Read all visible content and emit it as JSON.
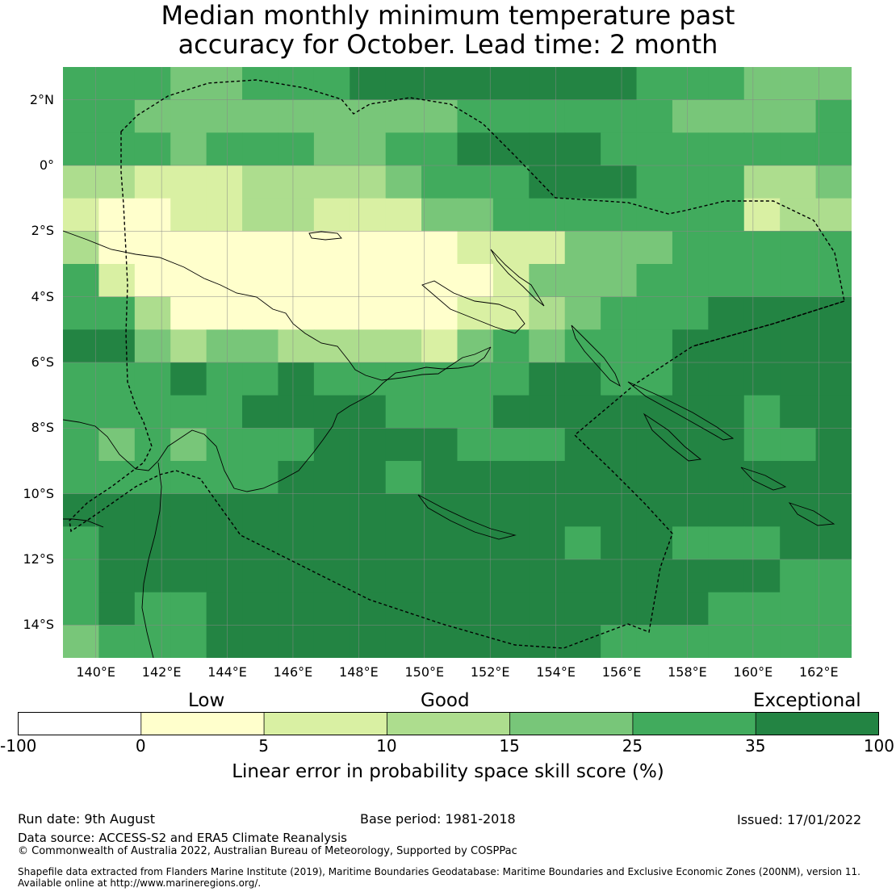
{
  "title": {
    "line1": "Median monthly minimum temperature past",
    "line2": "accuracy for October. Lead time: 2 month"
  },
  "map": {
    "lon_labels": [
      "140°E",
      "142°E",
      "144°E",
      "146°E",
      "148°E",
      "150°E",
      "152°E",
      "154°E",
      "156°E",
      "158°E",
      "160°E",
      "162°E"
    ],
    "lat_labels": [
      "2°N",
      "0°",
      "2°S",
      "4°S",
      "6°S",
      "8°S",
      "10°S",
      "12°S",
      "14°S"
    ],
    "lon_range": [
      139,
      163
    ],
    "lat_range": [
      -15,
      3
    ],
    "grid": true,
    "boundary_style": "dashed EEZ outline",
    "coastline_color": "#000000"
  },
  "legend": {
    "categories": [
      "Low",
      "Good",
      "Exceptional"
    ],
    "ticks": [
      "-100",
      "0",
      "5",
      "10",
      "15",
      "25",
      "35",
      "100"
    ],
    "bins": [
      {
        "from": -100,
        "to": 0,
        "color": "#ffffff"
      },
      {
        "from": 0,
        "to": 5,
        "color": "#ffffcc"
      },
      {
        "from": 5,
        "to": 10,
        "color": "#d9f0a3"
      },
      {
        "from": 10,
        "to": 15,
        "color": "#addd8e"
      },
      {
        "from": 15,
        "to": 25,
        "color": "#78c679"
      },
      {
        "from": 25,
        "to": 35,
        "color": "#41ab5d"
      },
      {
        "from": 35,
        "to": 100,
        "color": "#238443"
      }
    ],
    "title": "Linear error in probability space skill score (%)"
  },
  "footer": {
    "run_date": "Run date: 9th August",
    "base_period": "Base period: 1981-2018",
    "issued": "Issued: 17/01/2022",
    "data_source": "Data source: ACCESS-S2 and ERA5 Climate Reanalysis",
    "copyright": "© Commonwealth of Australia 2022, Australian Bureau of Meteorology, Supported by COSPPac",
    "shapefile_line1": "Shapefile data extracted from Flanders Marine Institute (2019), Maritime Boundaries Geodatabase: Maritime Boundaries and Exclusive Economic Zones (200NM), version 11.",
    "shapefile_line2": "Available online at http://www.marineregions.org/."
  }
}
